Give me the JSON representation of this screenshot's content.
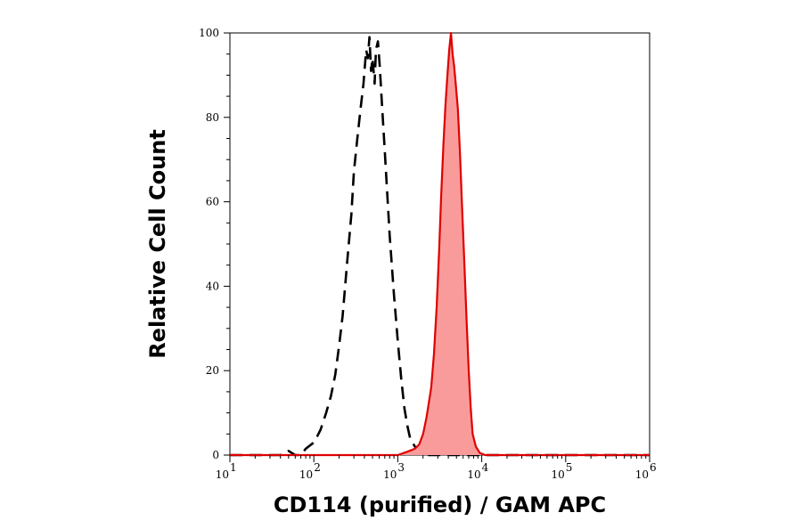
{
  "chart_data": {
    "type": "area",
    "title": "",
    "xlabel": "CD114 (purified) / GAM APC",
    "ylabel": "Relative Cell Count",
    "x_scale": "log",
    "xlim": [
      10,
      1000000
    ],
    "ylim": [
      0,
      100
    ],
    "x_ticks": [
      {
        "base": "10",
        "exp": "1",
        "value": 10
      },
      {
        "base": "10",
        "exp": "2",
        "value": 100
      },
      {
        "base": "10",
        "exp": "3",
        "value": 1000
      },
      {
        "base": "10",
        "exp": "4",
        "value": 10000
      },
      {
        "base": "10",
        "exp": "5",
        "value": 100000
      },
      {
        "base": "10",
        "exp": "6",
        "value": 1000000
      }
    ],
    "y_ticks": [
      {
        "label": "0",
        "value": 0
      },
      {
        "label": "20",
        "value": 20
      },
      {
        "label": "40",
        "value": 40
      },
      {
        "label": "60",
        "value": 60
      },
      {
        "label": "80",
        "value": 80
      },
      {
        "label": "100",
        "value": 100
      }
    ],
    "grid": false,
    "legend": "none",
    "series": [
      {
        "style": "dashed",
        "color": "#000000",
        "fill": "none",
        "points": [
          [
            10,
            0
          ],
          [
            40,
            0
          ],
          [
            50,
            1
          ],
          [
            60,
            0
          ],
          [
            70,
            0
          ],
          [
            80,
            1.5
          ],
          [
            100,
            3
          ],
          [
            110,
            4.5
          ],
          [
            120,
            6
          ],
          [
            140,
            10
          ],
          [
            160,
            14
          ],
          [
            180,
            19
          ],
          [
            200,
            26
          ],
          [
            220,
            33
          ],
          [
            250,
            46
          ],
          [
            280,
            57
          ],
          [
            300,
            67
          ],
          [
            330,
            75
          ],
          [
            360,
            82
          ],
          [
            390,
            88
          ],
          [
            420,
            96
          ],
          [
            440,
            94
          ],
          [
            460,
            99
          ],
          [
            480,
            91
          ],
          [
            500,
            94
          ],
          [
            530,
            88
          ],
          [
            550,
            96
          ],
          [
            580,
            98
          ],
          [
            610,
            92
          ],
          [
            640,
            85
          ],
          [
            700,
            72
          ],
          [
            800,
            52
          ],
          [
            900,
            38
          ],
          [
            1000,
            27
          ],
          [
            1100,
            18
          ],
          [
            1200,
            11
          ],
          [
            1300,
            7
          ],
          [
            1400,
            4
          ],
          [
            1600,
            2
          ],
          [
            1800,
            1
          ],
          [
            2000,
            0
          ],
          [
            1000000,
            0
          ]
        ]
      },
      {
        "style": "filled",
        "color": "#e00000",
        "fill": "#f99b9b",
        "points": [
          [
            10,
            0
          ],
          [
            1000,
            0
          ],
          [
            1300,
            0.8
          ],
          [
            1600,
            1.5
          ],
          [
            1800,
            2.5
          ],
          [
            2000,
            5
          ],
          [
            2200,
            9
          ],
          [
            2500,
            16
          ],
          [
            2700,
            24
          ],
          [
            2900,
            35
          ],
          [
            3100,
            48
          ],
          [
            3300,
            62
          ],
          [
            3500,
            74
          ],
          [
            3700,
            83
          ],
          [
            3900,
            90
          ],
          [
            4100,
            96
          ],
          [
            4300,
            100
          ],
          [
            4500,
            95
          ],
          [
            4700,
            92
          ],
          [
            4900,
            88
          ],
          [
            5200,
            82
          ],
          [
            5500,
            72
          ],
          [
            5800,
            60
          ],
          [
            6200,
            46
          ],
          [
            6600,
            32
          ],
          [
            7000,
            20
          ],
          [
            7400,
            11
          ],
          [
            7800,
            5
          ],
          [
            8500,
            2
          ],
          [
            9500,
            0.5
          ],
          [
            11000,
            0
          ],
          [
            1000000,
            0
          ]
        ]
      }
    ]
  }
}
